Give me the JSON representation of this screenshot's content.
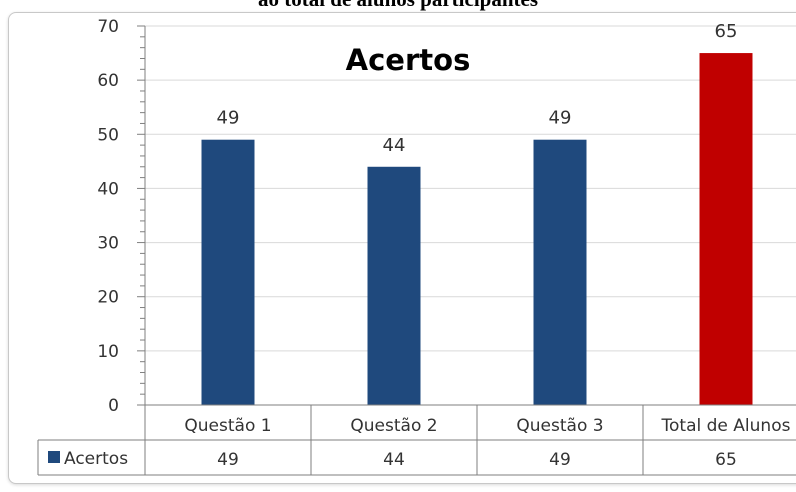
{
  "caption": "ao total de alunos participantes",
  "chart_data": {
    "type": "bar",
    "title": "Acertos",
    "categories": [
      "Questão 1",
      "Questão 2",
      "Questão 3",
      "Total de Alunos"
    ],
    "series": [
      {
        "name": "Acertos",
        "values": [
          49,
          44,
          49,
          65
        ]
      }
    ],
    "bar_colors": [
      "#1f497d",
      "#1f497d",
      "#1f497d",
      "#c00000"
    ],
    "ylim": [
      0,
      70
    ],
    "yticks": [
      0,
      10,
      20,
      30,
      40,
      50,
      60,
      70
    ],
    "grid": true,
    "data_labels": true,
    "legend_placement": "data-table-left",
    "data_table": {
      "series_label": "Acertos",
      "values": [
        49,
        44,
        49,
        65
      ]
    }
  }
}
